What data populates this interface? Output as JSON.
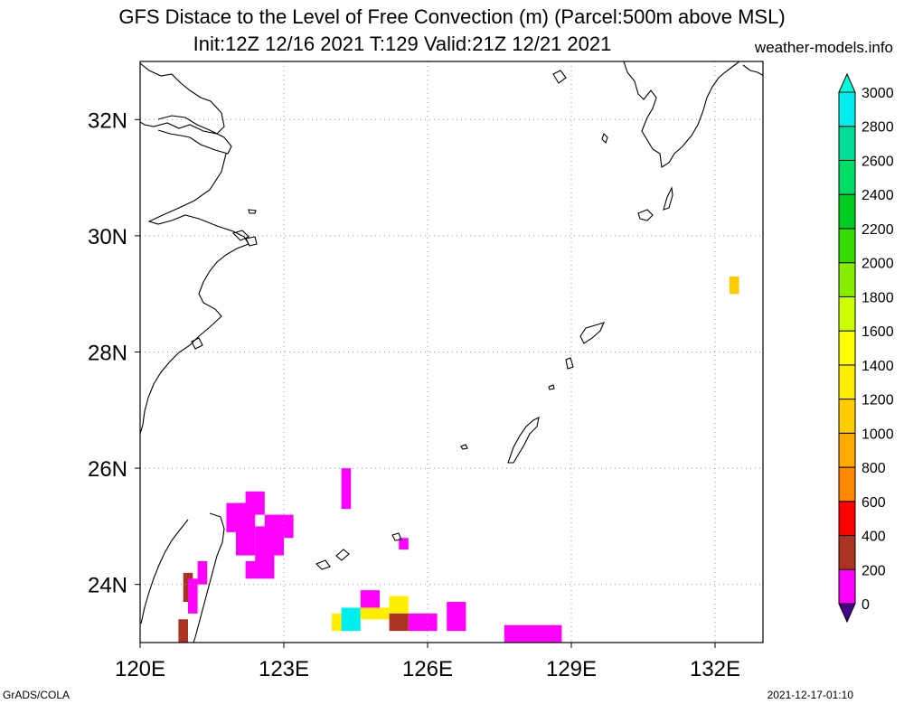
{
  "title": {
    "line1": "GFS Distace to the Level of Free Convection (m) (Parcel:500m above MSL)",
    "line2": "Init:12Z 12/16 2021 T:129 Valid:21Z 12/21 2021",
    "site": "weather-models.info"
  },
  "footer": {
    "left": "GrADS/COLA",
    "right": "2021-12-17-01:10"
  },
  "map": {
    "lon_range": [
      120,
      133
    ],
    "lat_range": [
      23,
      33
    ],
    "lon_ticks": [
      {
        "value": 120,
        "label": "120E"
      },
      {
        "value": 123,
        "label": "123E"
      },
      {
        "value": 126,
        "label": "126E"
      },
      {
        "value": 129,
        "label": "129E"
      },
      {
        "value": 132,
        "label": "132E"
      }
    ],
    "lat_ticks": [
      {
        "value": 24,
        "label": "24N"
      },
      {
        "value": 26,
        "label": "26N"
      },
      {
        "value": 28,
        "label": "28N"
      },
      {
        "value": 30,
        "label": "30N"
      },
      {
        "value": 32,
        "label": "32N"
      }
    ]
  },
  "colorbar": {
    "levels": [
      0,
      200,
      400,
      600,
      800,
      1000,
      1200,
      1400,
      1600,
      1800,
      2000,
      2200,
      2400,
      2600,
      2800,
      3000
    ],
    "colors": [
      "#440088",
      "#ff00ff",
      "#aa3322",
      "#ff0000",
      "#ff8800",
      "#ffaa00",
      "#ffcc00",
      "#ffee00",
      "#ffff00",
      "#ccff00",
      "#88ee00",
      "#33dd00",
      "#00cc22",
      "#00dd66",
      "#00dd99",
      "#00eeee",
      "#00ffdd"
    ]
  },
  "field": [
    {
      "lon1": 121.8,
      "lat1": 25.4,
      "lon2": 122.2,
      "lat2": 24.9,
      "value": 0
    },
    {
      "lon1": 122.0,
      "lat1": 25.4,
      "lon2": 122.4,
      "lat2": 24.5,
      "value": 0
    },
    {
      "lon1": 122.2,
      "lat1": 25.6,
      "lon2": 122.6,
      "lat2": 25.2,
      "value": 100
    },
    {
      "lon1": 122.4,
      "lat1": 25.0,
      "lon2": 122.8,
      "lat2": 24.4,
      "value": 0
    },
    {
      "lon1": 122.6,
      "lat1": 25.2,
      "lon2": 123.0,
      "lat2": 24.5,
      "value": 0
    },
    {
      "lon1": 122.8,
      "lat1": 25.2,
      "lon2": 123.2,
      "lat2": 24.8,
      "value": 0
    },
    {
      "lon1": 122.2,
      "lat1": 24.4,
      "lon2": 122.8,
      "lat2": 24.1,
      "value": 0
    },
    {
      "lon1": 124.2,
      "lat1": 26.0,
      "lon2": 124.4,
      "lat2": 25.3,
      "value": 0
    },
    {
      "lon1": 125.4,
      "lat1": 24.8,
      "lon2": 125.6,
      "lat2": 24.6,
      "value": 0
    },
    {
      "lon1": 121.2,
      "lat1": 24.4,
      "lon2": 121.4,
      "lat2": 24.0,
      "value": 0
    },
    {
      "lon1": 120.9,
      "lat1": 24.2,
      "lon2": 121.1,
      "lat2": 23.7,
      "value": 300
    },
    {
      "lon1": 121.0,
      "lat1": 24.1,
      "lon2": 121.2,
      "lat2": 23.5,
      "value": 100
    },
    {
      "lon1": 120.8,
      "lat1": 23.4,
      "lon2": 121.0,
      "lat2": 23.0,
      "value": 300
    },
    {
      "lon1": 124.0,
      "lat1": 23.5,
      "lon2": 124.4,
      "lat2": 23.2,
      "value": 1300
    },
    {
      "lon1": 124.2,
      "lat1": 23.6,
      "lon2": 124.6,
      "lat2": 23.2,
      "value": 2900
    },
    {
      "lon1": 124.6,
      "lat1": 23.6,
      "lon2": 125.2,
      "lat2": 23.4,
      "value": 1300
    },
    {
      "lon1": 124.6,
      "lat1": 23.9,
      "lon2": 125.0,
      "lat2": 23.6,
      "value": 0
    },
    {
      "lon1": 125.2,
      "lat1": 23.8,
      "lon2": 125.6,
      "lat2": 23.4,
      "value": 1300
    },
    {
      "lon1": 125.2,
      "lat1": 23.5,
      "lon2": 125.6,
      "lat2": 23.2,
      "value": 300
    },
    {
      "lon1": 125.6,
      "lat1": 23.5,
      "lon2": 126.2,
      "lat2": 23.2,
      "value": 0
    },
    {
      "lon1": 126.4,
      "lat1": 23.7,
      "lon2": 126.8,
      "lat2": 23.2,
      "value": 0
    },
    {
      "lon1": 127.6,
      "lat1": 23.3,
      "lon2": 128.0,
      "lat2": 23.0,
      "value": 0
    },
    {
      "lon1": 128.0,
      "lat1": 23.3,
      "lon2": 128.8,
      "lat2": 23.0,
      "value": 100
    },
    {
      "lon1": 132.3,
      "lat1": 29.3,
      "lon2": 132.5,
      "lat2": 29.0,
      "value": 1000
    }
  ]
}
